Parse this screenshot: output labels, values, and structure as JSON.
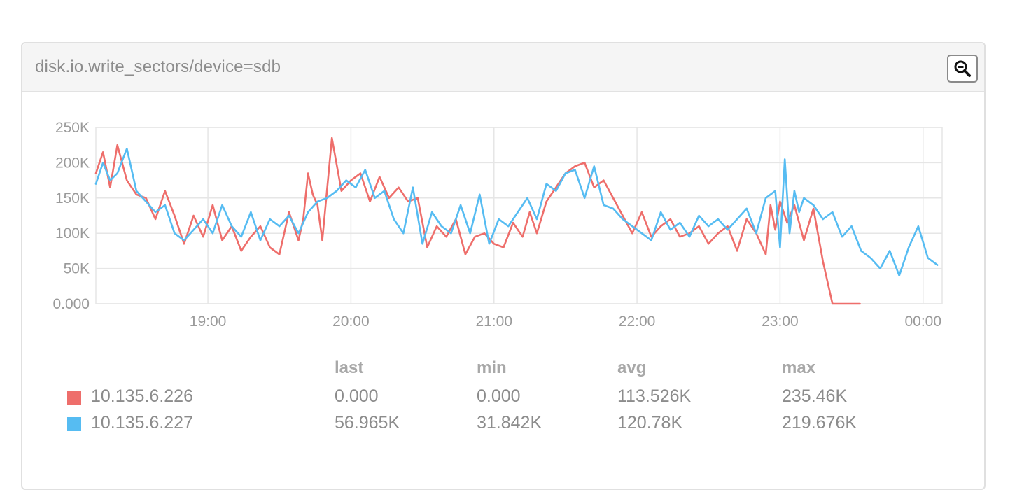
{
  "panel": {
    "title": "disk.io.write_sectors/device=sdb",
    "zoom_icon": "zoom-out-icon"
  },
  "colors": {
    "series1": "#ee6e6b",
    "series2": "#56bcf2",
    "grid": "#e6e6e6"
  },
  "stats": {
    "headers": [
      "last",
      "min",
      "avg",
      "max"
    ],
    "rows": [
      {
        "name": "10.135.6.226",
        "last": "0.000",
        "min": "0.000",
        "avg": "113.526K",
        "max": "235.46K"
      },
      {
        "name": "10.135.6.227",
        "last": "56.965K",
        "min": "31.842K",
        "avg": "120.78K",
        "max": "219.676K"
      }
    ]
  },
  "chart_data": {
    "type": "line",
    "title": "disk.io.write_sectors/device=sdb",
    "xlabel": "",
    "ylabel": "",
    "x_tick_labels": [
      "19:00",
      "20:00",
      "21:00",
      "22:00",
      "23:00",
      "00:00"
    ],
    "x_tick_times_min": [
      1140,
      1200,
      1260,
      1320,
      1380,
      1440
    ],
    "xlim_min": [
      1093,
      1448
    ],
    "y_tick_labels": [
      "0.000",
      "50K",
      "100K",
      "150K",
      "200K",
      "250K"
    ],
    "y_tick_values": [
      0,
      50000,
      100000,
      150000,
      200000,
      250000
    ],
    "ylim": [
      0,
      250000
    ],
    "grid": true,
    "series": [
      {
        "name": "10.135.6.226",
        "color": "#ee6e6b",
        "points_time_min": [
          1093,
          1096,
          1099,
          1102,
          1106,
          1110,
          1114,
          1118,
          1122,
          1126,
          1130,
          1134,
          1138,
          1142,
          1146,
          1150,
          1154,
          1158,
          1162,
          1166,
          1170,
          1174,
          1178,
          1180,
          1182,
          1184,
          1186,
          1188,
          1192,
          1196,
          1200,
          1204,
          1208,
          1212,
          1216,
          1220,
          1224,
          1228,
          1232,
          1236,
          1240,
          1244,
          1248,
          1252,
          1256,
          1260,
          1264,
          1268,
          1272,
          1275,
          1278,
          1282,
          1286,
          1290,
          1294,
          1298,
          1302,
          1306,
          1310,
          1314,
          1318,
          1322,
          1326,
          1330,
          1334,
          1338,
          1342,
          1346,
          1350,
          1354,
          1358,
          1362,
          1366,
          1370,
          1374,
          1376,
          1378,
          1380,
          1383,
          1386,
          1390,
          1394,
          1398,
          1402,
          1406,
          1410,
          1413,
          1413.5
        ],
        "values": [
          185000,
          215000,
          165000,
          225000,
          175000,
          155000,
          150000,
          120000,
          160000,
          125000,
          85000,
          125000,
          95000,
          140000,
          90000,
          110000,
          75000,
          95000,
          110000,
          80000,
          70000,
          130000,
          90000,
          120000,
          185000,
          155000,
          140000,
          90000,
          235000,
          160000,
          175000,
          185000,
          145000,
          180000,
          150000,
          165000,
          145000,
          150000,
          80000,
          110000,
          95000,
          120000,
          70000,
          95000,
          100000,
          85000,
          80000,
          115000,
          95000,
          130000,
          100000,
          145000,
          165000,
          185000,
          195000,
          200000,
          165000,
          175000,
          150000,
          125000,
          100000,
          130000,
          95000,
          110000,
          120000,
          95000,
          100000,
          110000,
          85000,
          100000,
          110000,
          75000,
          120000,
          100000,
          70000,
          140000,
          105000,
          145000,
          115000,
          140000,
          90000,
          135000,
          60000,
          0,
          0,
          0,
          0,
          0
        ]
      },
      {
        "name": "10.135.6.227",
        "color": "#56bcf2",
        "points_time_min": [
          1093,
          1096,
          1099,
          1102,
          1106,
          1110,
          1114,
          1118,
          1122,
          1126,
          1130,
          1134,
          1138,
          1142,
          1146,
          1150,
          1154,
          1158,
          1162,
          1166,
          1170,
          1174,
          1178,
          1182,
          1186,
          1190,
          1194,
          1198,
          1202,
          1206,
          1210,
          1214,
          1218,
          1222,
          1226,
          1230,
          1234,
          1238,
          1242,
          1246,
          1250,
          1254,
          1258,
          1262,
          1266,
          1270,
          1274,
          1278,
          1282,
          1286,
          1290,
          1294,
          1298,
          1302,
          1306,
          1310,
          1314,
          1318,
          1322,
          1326,
          1330,
          1334,
          1338,
          1342,
          1346,
          1350,
          1354,
          1358,
          1362,
          1366,
          1370,
          1374,
          1378,
          1380,
          1382,
          1384,
          1386,
          1388,
          1390,
          1394,
          1398,
          1402,
          1406,
          1410,
          1414,
          1418,
          1422,
          1426,
          1430,
          1434,
          1438,
          1442,
          1446
        ],
        "values": [
          170000,
          200000,
          175000,
          185000,
          220000,
          160000,
          145000,
          130000,
          140000,
          100000,
          90000,
          105000,
          120000,
          100000,
          140000,
          110000,
          95000,
          130000,
          90000,
          120000,
          110000,
          125000,
          100000,
          130000,
          145000,
          150000,
          160000,
          175000,
          165000,
          190000,
          150000,
          160000,
          120000,
          100000,
          165000,
          85000,
          130000,
          110000,
          100000,
          140000,
          100000,
          155000,
          85000,
          120000,
          110000,
          130000,
          150000,
          120000,
          170000,
          160000,
          185000,
          190000,
          150000,
          195000,
          140000,
          135000,
          120000,
          110000,
          100000,
          90000,
          130000,
          105000,
          115000,
          95000,
          125000,
          110000,
          120000,
          105000,
          120000,
          135000,
          100000,
          150000,
          160000,
          80000,
          205000,
          100000,
          160000,
          130000,
          150000,
          140000,
          120000,
          130000,
          95000,
          110000,
          75000,
          65000,
          50000,
          75000,
          40000,
          80000,
          110000,
          65000,
          55000
        ]
      }
    ]
  }
}
